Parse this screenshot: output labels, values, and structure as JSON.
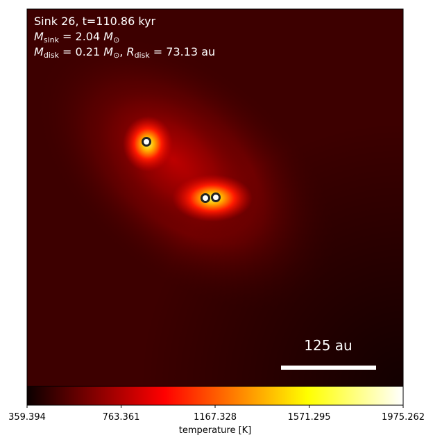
{
  "chart_data": {
    "type": "heatmap",
    "colormap": "hot",
    "annotations": [
      [
        {
          "text": "Sink 26, t=110.86 kyr"
        }
      ],
      [
        {
          "text": "M",
          "italic": true
        },
        {
          "text": "sink",
          "sub": true
        },
        {
          "text": " = 2.04 "
        },
        {
          "text": "M",
          "italic": true
        },
        {
          "text": "⊙",
          "sub": true
        }
      ],
      [
        {
          "text": "M",
          "italic": true
        },
        {
          "text": "disk",
          "sub": true
        },
        {
          "text": " = 0.21 "
        },
        {
          "text": "M",
          "italic": true
        },
        {
          "text": "⊙",
          "sub": true
        },
        {
          "text": ", "
        },
        {
          "text": "R",
          "italic": true
        },
        {
          "text": "disk",
          "sub": true
        },
        {
          "text": " = 73.13 au"
        }
      ]
    ],
    "scale_bar": "125 au",
    "colorbar": {
      "label": "temperature [K]",
      "lim": [
        359.394,
        1975.262
      ],
      "ticks": [
        359.394,
        763.361,
        1167.328,
        1571.295,
        1975.262
      ]
    }
  }
}
